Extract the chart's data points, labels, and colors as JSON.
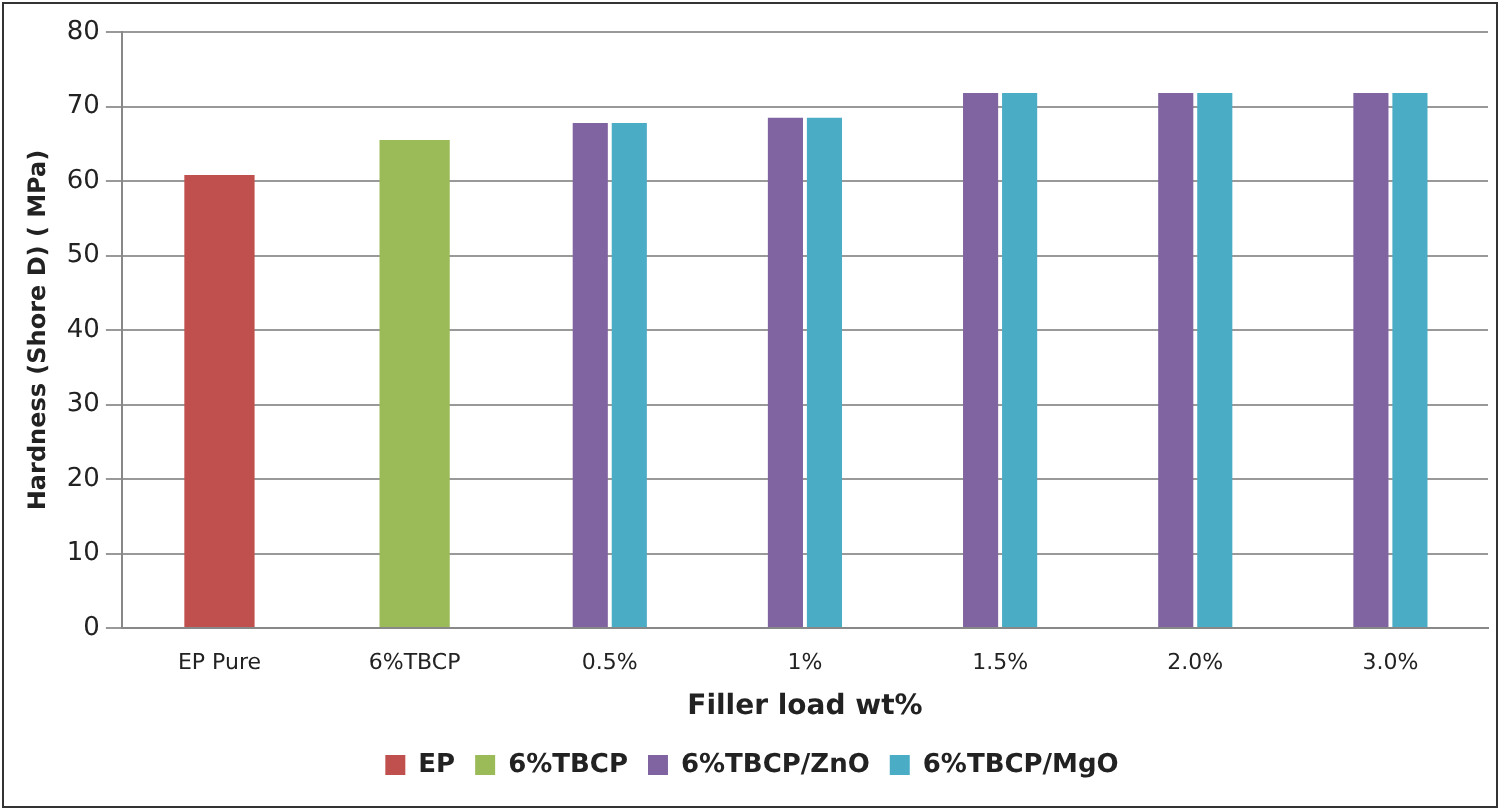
{
  "chart_data": {
    "type": "bar",
    "xlabel": "Filler load wt%",
    "ylabel": "Hardness (Shore D) ( MPa)",
    "categories": [
      "EP Pure",
      "6%TBCP",
      "0.5%",
      "1%",
      "1.5%",
      "2.0%",
      "3.0%"
    ],
    "series": [
      {
        "name": "EP",
        "color": "#c0504d",
        "values": [
          60.8,
          null,
          null,
          null,
          null,
          null,
          null
        ]
      },
      {
        "name": "6%TBCP",
        "color": "#9bbb59",
        "values": [
          null,
          65.5,
          null,
          null,
          null,
          null,
          null
        ]
      },
      {
        "name": "6%TBCP/ZnO",
        "color": "#8064a2",
        "values": [
          null,
          null,
          67.8,
          68.5,
          71.8,
          71.8,
          71.8
        ]
      },
      {
        "name": "6%TBCP/MgO",
        "color": "#4bacc6",
        "values": [
          null,
          null,
          67.8,
          68.5,
          71.8,
          71.8,
          71.8
        ]
      }
    ],
    "ylim": [
      0,
      80
    ],
    "yticks": [
      0,
      10,
      20,
      30,
      40,
      50,
      60,
      70,
      80
    ],
    "grid": "y",
    "legend": "bottom"
  }
}
